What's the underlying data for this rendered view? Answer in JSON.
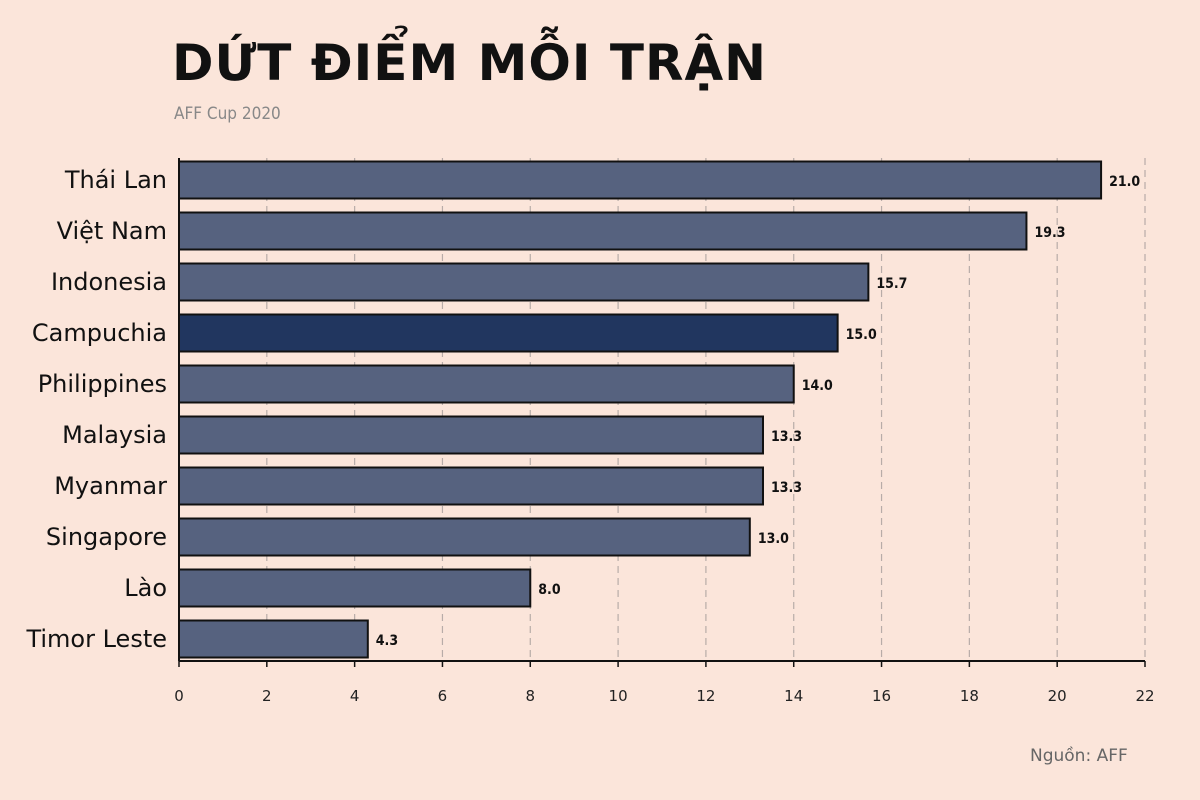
{
  "title": "DỨT ĐIỂM MỖI TRẬN",
  "subtitle": "AFF Cup 2020",
  "source": "Nguồn: AFF",
  "colors": {
    "background": "#fbe5da",
    "bar": "#56627f",
    "highlight": "#21365f",
    "grid": "#b8aca8"
  },
  "chart_data": {
    "type": "bar",
    "orientation": "horizontal",
    "categories": [
      "Thái Lan",
      "Việt Nam",
      "Indonesia",
      "Campuchia",
      "Philippines",
      "Malaysia",
      "Myanmar",
      "Singapore",
      "Lào",
      "Timor Leste"
    ],
    "values": [
      21.0,
      19.3,
      15.7,
      15.0,
      14.0,
      13.3,
      13.3,
      13.0,
      8.0,
      4.3
    ],
    "value_labels": [
      "21.0",
      "19.3",
      "15.7",
      "15.0",
      "14.0",
      "13.3",
      "13.3",
      "13.0",
      "8.0",
      "4.3"
    ],
    "highlight": "Campuchia",
    "xlim": [
      0,
      22
    ],
    "xticks": [
      "0",
      "2",
      "4",
      "6",
      "8",
      "10",
      "12",
      "14",
      "16",
      "18",
      "20",
      "22"
    ],
    "grid": "vertical dashed",
    "xlabel": "",
    "ylabel": ""
  }
}
